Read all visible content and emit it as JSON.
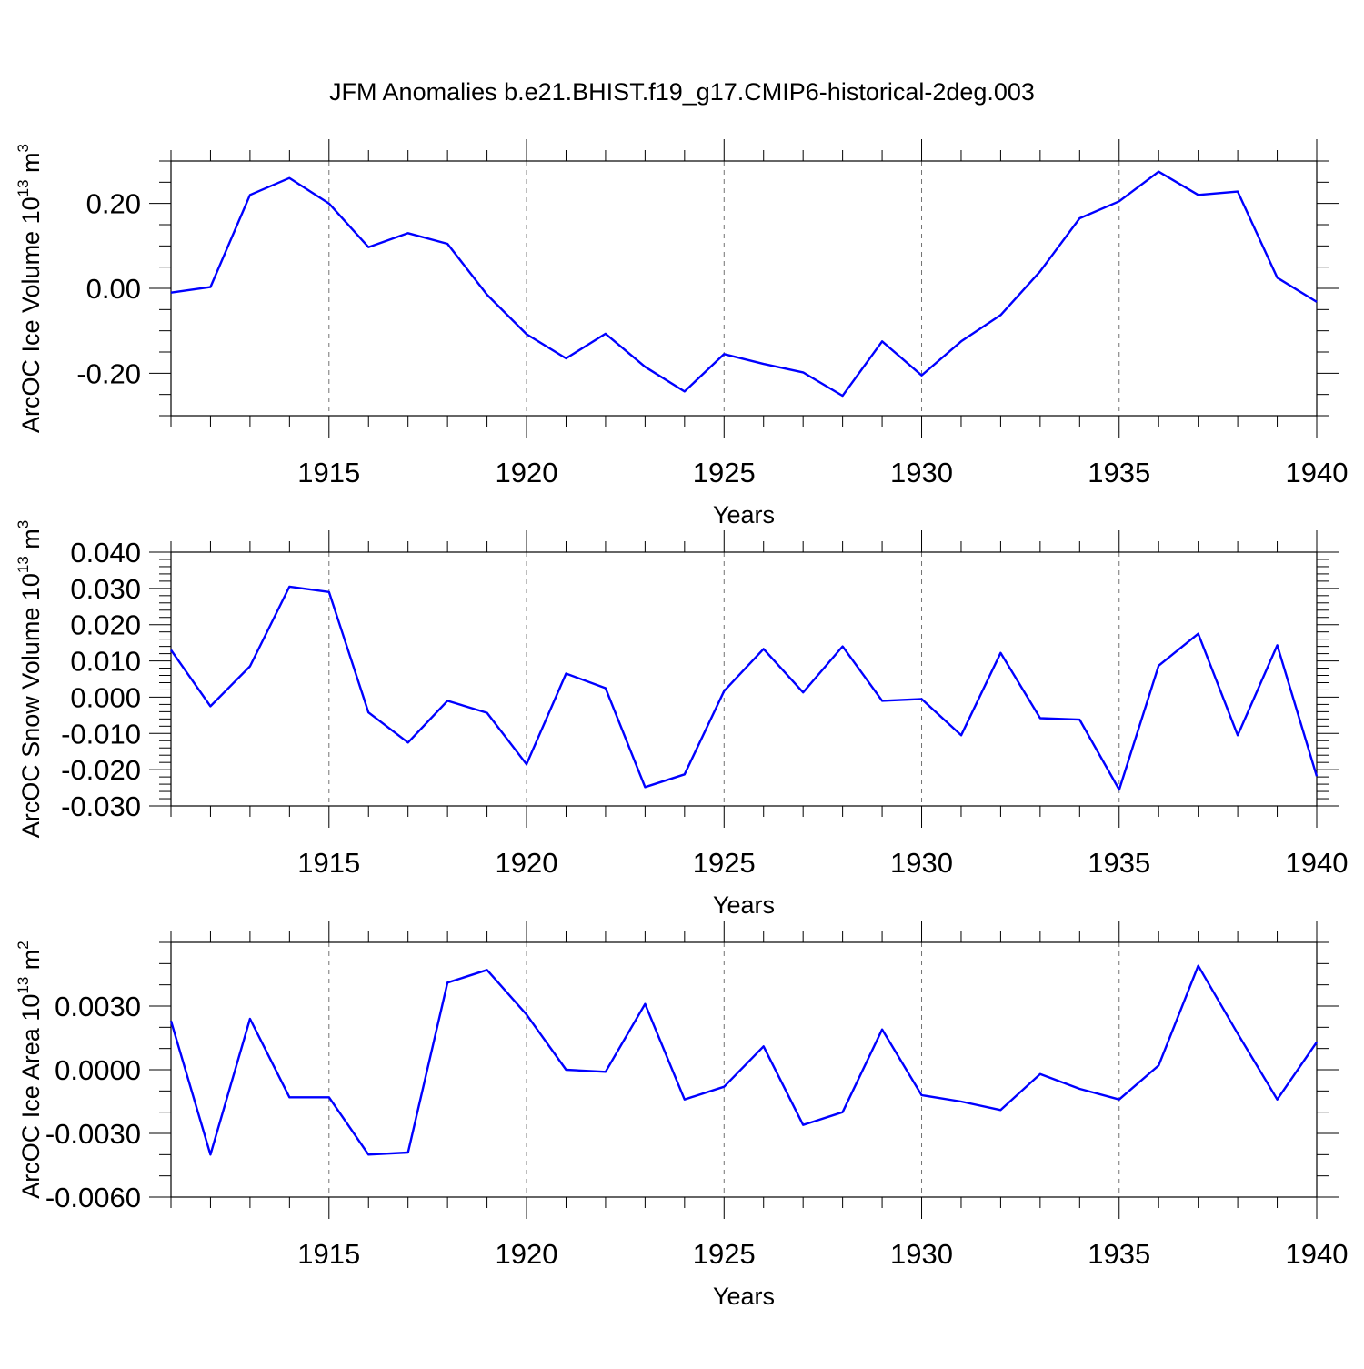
{
  "title": "JFM Anomalies b.e21.BHIST.f19_g17.CMIP6-historical-2deg.003",
  "colors": {
    "series": "#0000ff",
    "axes": "#000000",
    "background": "#ffffff"
  },
  "chart_data": [
    {
      "type": "line",
      "title": "JFM Anomalies b.e21.BHIST.f19_g17.CMIP6-historical-2deg.003",
      "xlabel": "Years",
      "ylabel": "ArcOC Ice Volume 10",
      "ylabel_sup": "13",
      "ylabel_unit": "m",
      "ylabel_unit_sup": "3",
      "xlim": [
        1911,
        1940
      ],
      "ylim": [
        -0.3,
        0.3
      ],
      "x_ticks": [
        1915,
        1920,
        1925,
        1930,
        1935,
        1940
      ],
      "x_tick_labels": [
        "1915",
        "1920",
        "1925",
        "1930",
        "1935",
        "1940"
      ],
      "y_ticks": [
        0.2,
        0.0,
        -0.2
      ],
      "y_tick_labels": [
        "0.20",
        "0.00",
        "-0.20"
      ],
      "y_minor_step": 0.05,
      "grid": "vertical dashed at major x ticks",
      "x": [
        1911,
        1912,
        1913,
        1914,
        1915,
        1916,
        1917,
        1918,
        1919,
        1920,
        1921,
        1922,
        1923,
        1924,
        1925,
        1926,
        1927,
        1928,
        1929,
        1930,
        1931,
        1932,
        1933,
        1934,
        1935,
        1936,
        1937,
        1938,
        1939,
        1940
      ],
      "series": [
        {
          "name": "ArcOC Ice Volume",
          "values": [
            -0.01,
            0.003,
            0.22,
            0.26,
            0.2,
            0.097,
            0.13,
            0.105,
            -0.015,
            -0.108,
            -0.165,
            -0.107,
            -0.185,
            -0.243,
            -0.155,
            -0.178,
            -0.198,
            -0.253,
            -0.125,
            -0.205,
            -0.125,
            -0.063,
            0.04,
            0.165,
            0.205,
            0.275,
            0.22,
            0.228,
            0.025,
            -0.032
          ]
        }
      ]
    },
    {
      "type": "line",
      "xlabel": "Years",
      "ylabel": "ArcOC Snow Volume 10",
      "ylabel_sup": "13",
      "ylabel_unit": "m",
      "ylabel_unit_sup": "3",
      "xlim": [
        1911,
        1940
      ],
      "ylim": [
        -0.03,
        0.04
      ],
      "x_ticks": [
        1915,
        1920,
        1925,
        1930,
        1935,
        1940
      ],
      "x_tick_labels": [
        "1915",
        "1920",
        "1925",
        "1930",
        "1935",
        "1940"
      ],
      "y_ticks": [
        0.04,
        0.03,
        0.02,
        0.01,
        0.0,
        -0.01,
        -0.02,
        -0.03
      ],
      "y_tick_labels": [
        "0.040",
        "0.030",
        "0.020",
        "0.010",
        "0.000",
        "-0.010",
        "-0.020",
        "-0.030"
      ],
      "y_minor_step": 0.002,
      "grid": "vertical dashed at major x ticks",
      "x": [
        1911,
        1912,
        1913,
        1914,
        1915,
        1916,
        1917,
        1918,
        1919,
        1920,
        1921,
        1922,
        1923,
        1924,
        1925,
        1926,
        1927,
        1928,
        1929,
        1930,
        1931,
        1932,
        1933,
        1934,
        1935,
        1936,
        1937,
        1938,
        1939,
        1940
      ],
      "series": [
        {
          "name": "ArcOC Snow Volume",
          "values": [
            0.013,
            -0.0025,
            0.0085,
            0.0305,
            0.029,
            -0.0042,
            -0.0125,
            -0.001,
            -0.0043,
            -0.0185,
            0.0065,
            0.0025,
            -0.0248,
            -0.0213,
            0.0017,
            0.0133,
            0.0013,
            0.014,
            -0.001,
            -0.0005,
            -0.0105,
            0.0122,
            -0.0058,
            -0.0062,
            -0.0255,
            0.0087,
            0.0175,
            -0.0105,
            0.0143,
            -0.0218
          ]
        }
      ]
    },
    {
      "type": "line",
      "xlabel": "Years",
      "ylabel": "ArcOC Ice Area 10",
      "ylabel_sup": "13",
      "ylabel_unit": "m",
      "ylabel_unit_sup": "2",
      "xlim": [
        1911,
        1940
      ],
      "ylim": [
        -0.006,
        0.006
      ],
      "x_ticks": [
        1915,
        1920,
        1925,
        1930,
        1935,
        1940
      ],
      "x_tick_labels": [
        "1915",
        "1920",
        "1925",
        "1930",
        "1935",
        "1940"
      ],
      "y_ticks": [
        0.003,
        0.0,
        -0.003,
        -0.006
      ],
      "y_tick_labels": [
        "0.0030",
        "0.0000",
        "-0.0030",
        "-0.0060"
      ],
      "y_minor_step": 0.001,
      "grid": "vertical dashed at major x ticks",
      "x": [
        1911,
        1912,
        1913,
        1914,
        1915,
        1916,
        1917,
        1918,
        1919,
        1920,
        1921,
        1922,
        1923,
        1924,
        1925,
        1926,
        1927,
        1928,
        1929,
        1930,
        1931,
        1932,
        1933,
        1934,
        1935,
        1936,
        1937,
        1938,
        1939,
        1940
      ],
      "series": [
        {
          "name": "ArcOC Ice Area",
          "values": [
            0.0023,
            -0.004,
            0.0024,
            -0.0013,
            -0.0013,
            -0.004,
            -0.0039,
            0.0041,
            0.0047,
            0.0026,
            0.0,
            -0.0001,
            0.0031,
            -0.0014,
            -0.0008,
            0.0011,
            -0.0026,
            -0.002,
            0.0019,
            -0.0012,
            -0.0015,
            -0.0019,
            -0.0002,
            -0.0009,
            -0.0014,
            0.0002,
            0.0049,
            0.0017,
            -0.0014,
            0.0013
          ]
        }
      ]
    }
  ]
}
